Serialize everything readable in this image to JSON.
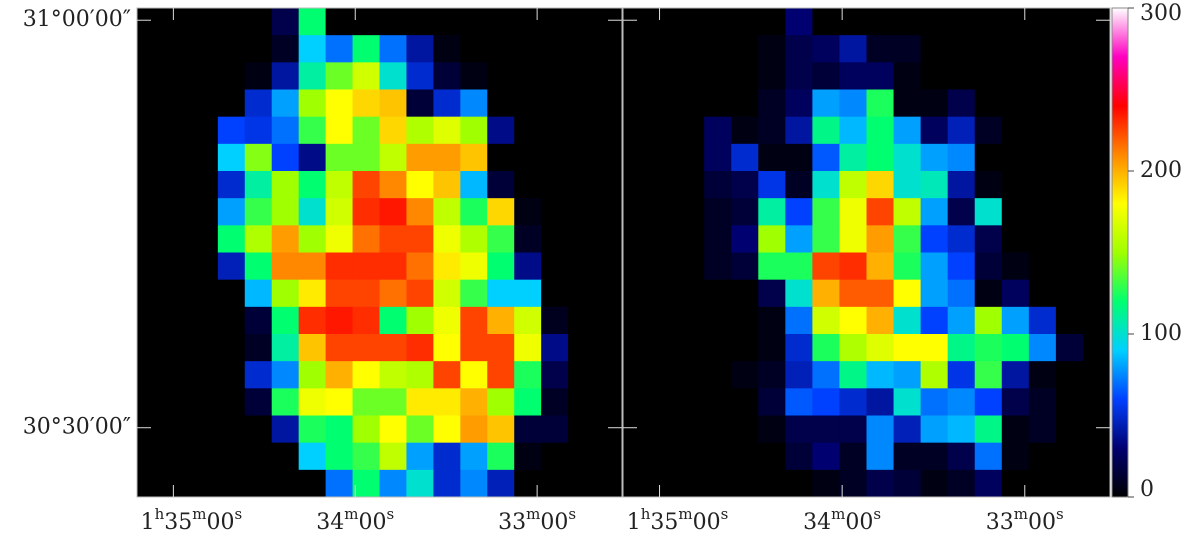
{
  "chart_data": {
    "type": "heatmap",
    "panels": [
      {
        "values": [
          [
            0,
            0,
            0,
            0,
            0,
            20,
            120,
            0,
            0,
            0,
            0,
            0,
            0,
            0,
            0,
            0,
            0,
            0
          ],
          [
            0,
            0,
            0,
            0,
            0,
            10,
            90,
            70,
            120,
            70,
            40,
            5,
            0,
            0,
            0,
            0,
            0,
            0
          ],
          [
            0,
            0,
            0,
            0,
            5,
            40,
            110,
            140,
            165,
            100,
            50,
            15,
            5,
            0,
            0,
            0,
            0,
            0
          ],
          [
            0,
            0,
            0,
            0,
            50,
            80,
            150,
            180,
            190,
            195,
            15,
            50,
            75,
            0,
            0,
            0,
            0,
            0
          ],
          [
            0,
            0,
            0,
            60,
            55,
            70,
            130,
            180,
            140,
            190,
            155,
            170,
            150,
            35,
            0,
            0,
            0,
            0
          ],
          [
            0,
            0,
            0,
            90,
            145,
            60,
            35,
            140,
            140,
            160,
            205,
            205,
            195,
            0,
            0,
            0,
            0,
            0
          ],
          [
            0,
            0,
            0,
            50,
            110,
            150,
            120,
            160,
            225,
            210,
            180,
            195,
            85,
            15,
            0,
            0,
            0,
            0
          ],
          [
            0,
            0,
            0,
            80,
            130,
            150,
            100,
            165,
            230,
            235,
            210,
            160,
            125,
            190,
            5,
            0,
            0,
            0
          ],
          [
            0,
            0,
            0,
            120,
            155,
            205,
            150,
            175,
            215,
            225,
            225,
            175,
            155,
            130,
            10,
            0,
            0,
            0
          ],
          [
            0,
            0,
            0,
            45,
            120,
            210,
            210,
            230,
            230,
            230,
            215,
            185,
            175,
            120,
            35,
            0,
            0,
            0
          ],
          [
            0,
            0,
            0,
            0,
            85,
            150,
            185,
            225,
            225,
            215,
            225,
            165,
            130,
            90,
            90,
            0,
            0,
            0
          ],
          [
            0,
            0,
            0,
            0,
            15,
            120,
            230,
            235,
            230,
            120,
            150,
            175,
            225,
            200,
            165,
            8,
            0,
            0
          ],
          [
            0,
            0,
            0,
            0,
            10,
            110,
            195,
            225,
            225,
            225,
            230,
            180,
            225,
            225,
            175,
            35,
            0,
            0
          ],
          [
            0,
            0,
            0,
            0,
            50,
            75,
            150,
            200,
            180,
            160,
            155,
            225,
            180,
            225,
            125,
            20,
            0,
            0
          ],
          [
            0,
            0,
            0,
            0,
            15,
            125,
            175,
            180,
            140,
            140,
            185,
            185,
            200,
            150,
            120,
            10,
            0,
            0
          ],
          [
            0,
            0,
            0,
            0,
            0,
            40,
            125,
            120,
            150,
            180,
            140,
            180,
            205,
            195,
            15,
            15,
            0,
            0
          ],
          [
            0,
            0,
            0,
            0,
            0,
            0,
            90,
            120,
            130,
            160,
            80,
            50,
            80,
            125,
            5,
            0,
            0,
            0
          ],
          [
            0,
            0,
            0,
            0,
            0,
            0,
            0,
            70,
            120,
            75,
            100,
            50,
            75,
            45,
            0,
            0,
            0,
            0
          ]
        ]
      },
      {
        "values": [
          [
            0,
            0,
            0,
            0,
            0,
            0,
            30,
            0,
            0,
            0,
            0,
            0,
            0,
            0,
            0,
            0,
            0,
            0
          ],
          [
            0,
            0,
            0,
            0,
            0,
            5,
            20,
            25,
            40,
            10,
            10,
            0,
            0,
            0,
            0,
            0,
            0,
            0
          ],
          [
            0,
            0,
            0,
            0,
            0,
            5,
            20,
            15,
            25,
            25,
            5,
            0,
            0,
            0,
            0,
            0,
            0,
            0
          ],
          [
            0,
            0,
            0,
            0,
            0,
            10,
            25,
            80,
            75,
            125,
            5,
            5,
            20,
            0,
            0,
            0,
            0,
            0
          ],
          [
            0,
            0,
            0,
            25,
            5,
            10,
            40,
            115,
            85,
            120,
            80,
            25,
            45,
            10,
            0,
            0,
            0,
            0
          ],
          [
            0,
            0,
            0,
            25,
            50,
            5,
            5,
            65,
            110,
            120,
            100,
            80,
            75,
            0,
            0,
            0,
            0,
            0
          ],
          [
            0,
            0,
            0,
            15,
            20,
            55,
            10,
            100,
            160,
            190,
            100,
            105,
            40,
            5,
            0,
            0,
            0,
            0
          ],
          [
            0,
            0,
            0,
            10,
            15,
            110,
            60,
            130,
            175,
            225,
            160,
            80,
            20,
            100,
            0,
            0,
            0,
            0
          ],
          [
            0,
            0,
            0,
            10,
            30,
            150,
            80,
            130,
            175,
            205,
            130,
            60,
            50,
            20,
            0,
            0,
            0,
            0
          ],
          [
            0,
            0,
            0,
            10,
            15,
            125,
            125,
            225,
            230,
            200,
            125,
            80,
            60,
            15,
            5,
            0,
            0,
            0
          ],
          [
            0,
            0,
            0,
            0,
            0,
            20,
            100,
            200,
            220,
            220,
            180,
            80,
            70,
            5,
            25,
            0,
            0,
            0
          ],
          [
            0,
            0,
            0,
            0,
            0,
            5,
            70,
            165,
            180,
            200,
            100,
            60,
            80,
            150,
            80,
            50,
            0,
            0
          ],
          [
            0,
            0,
            0,
            0,
            0,
            5,
            50,
            125,
            155,
            170,
            180,
            180,
            115,
            125,
            120,
            75,
            15,
            0
          ],
          [
            0,
            0,
            0,
            0,
            5,
            10,
            45,
            70,
            115,
            85,
            80,
            155,
            55,
            130,
            40,
            5,
            0,
            0
          ],
          [
            0,
            0,
            0,
            0,
            0,
            15,
            65,
            60,
            50,
            40,
            100,
            70,
            75,
            60,
            20,
            10,
            0,
            0
          ],
          [
            0,
            0,
            0,
            0,
            0,
            5,
            20,
            20,
            20,
            75,
            45,
            80,
            85,
            115,
            5,
            10,
            0,
            0
          ],
          [
            0,
            0,
            0,
            0,
            0,
            0,
            15,
            30,
            10,
            75,
            10,
            10,
            20,
            70,
            5,
            0,
            0,
            0
          ],
          [
            0,
            0,
            0,
            0,
            0,
            0,
            0,
            5,
            10,
            20,
            15,
            5,
            10,
            25,
            0,
            0,
            0,
            0
          ]
        ]
      }
    ],
    "xlim": [
      5712,
      5552
    ],
    "xticks": [
      {
        "value": 5700,
        "label": "1h35m00s"
      },
      {
        "value": 5640,
        "label": "34m00s"
      },
      {
        "value": 5580,
        "label": "33m00s"
      }
    ],
    "ylim": [
      30.415,
      31.015
    ],
    "yticks": [
      {
        "value": 31.0,
        "label": "31°00′00″"
      },
      {
        "value": 30.5,
        "label": "30°30′00″"
      }
    ],
    "clim": [
      0,
      300
    ],
    "cticks": [
      0,
      100,
      200,
      300
    ],
    "colormap": [
      "#000000",
      "#000070",
      "#0040ff",
      "#00d0ff",
      "#00ff70",
      "#a0ff00",
      "#ffff00",
      "#ff8800",
      "#ff0000",
      "#ff00c0",
      "#ffffff"
    ]
  }
}
